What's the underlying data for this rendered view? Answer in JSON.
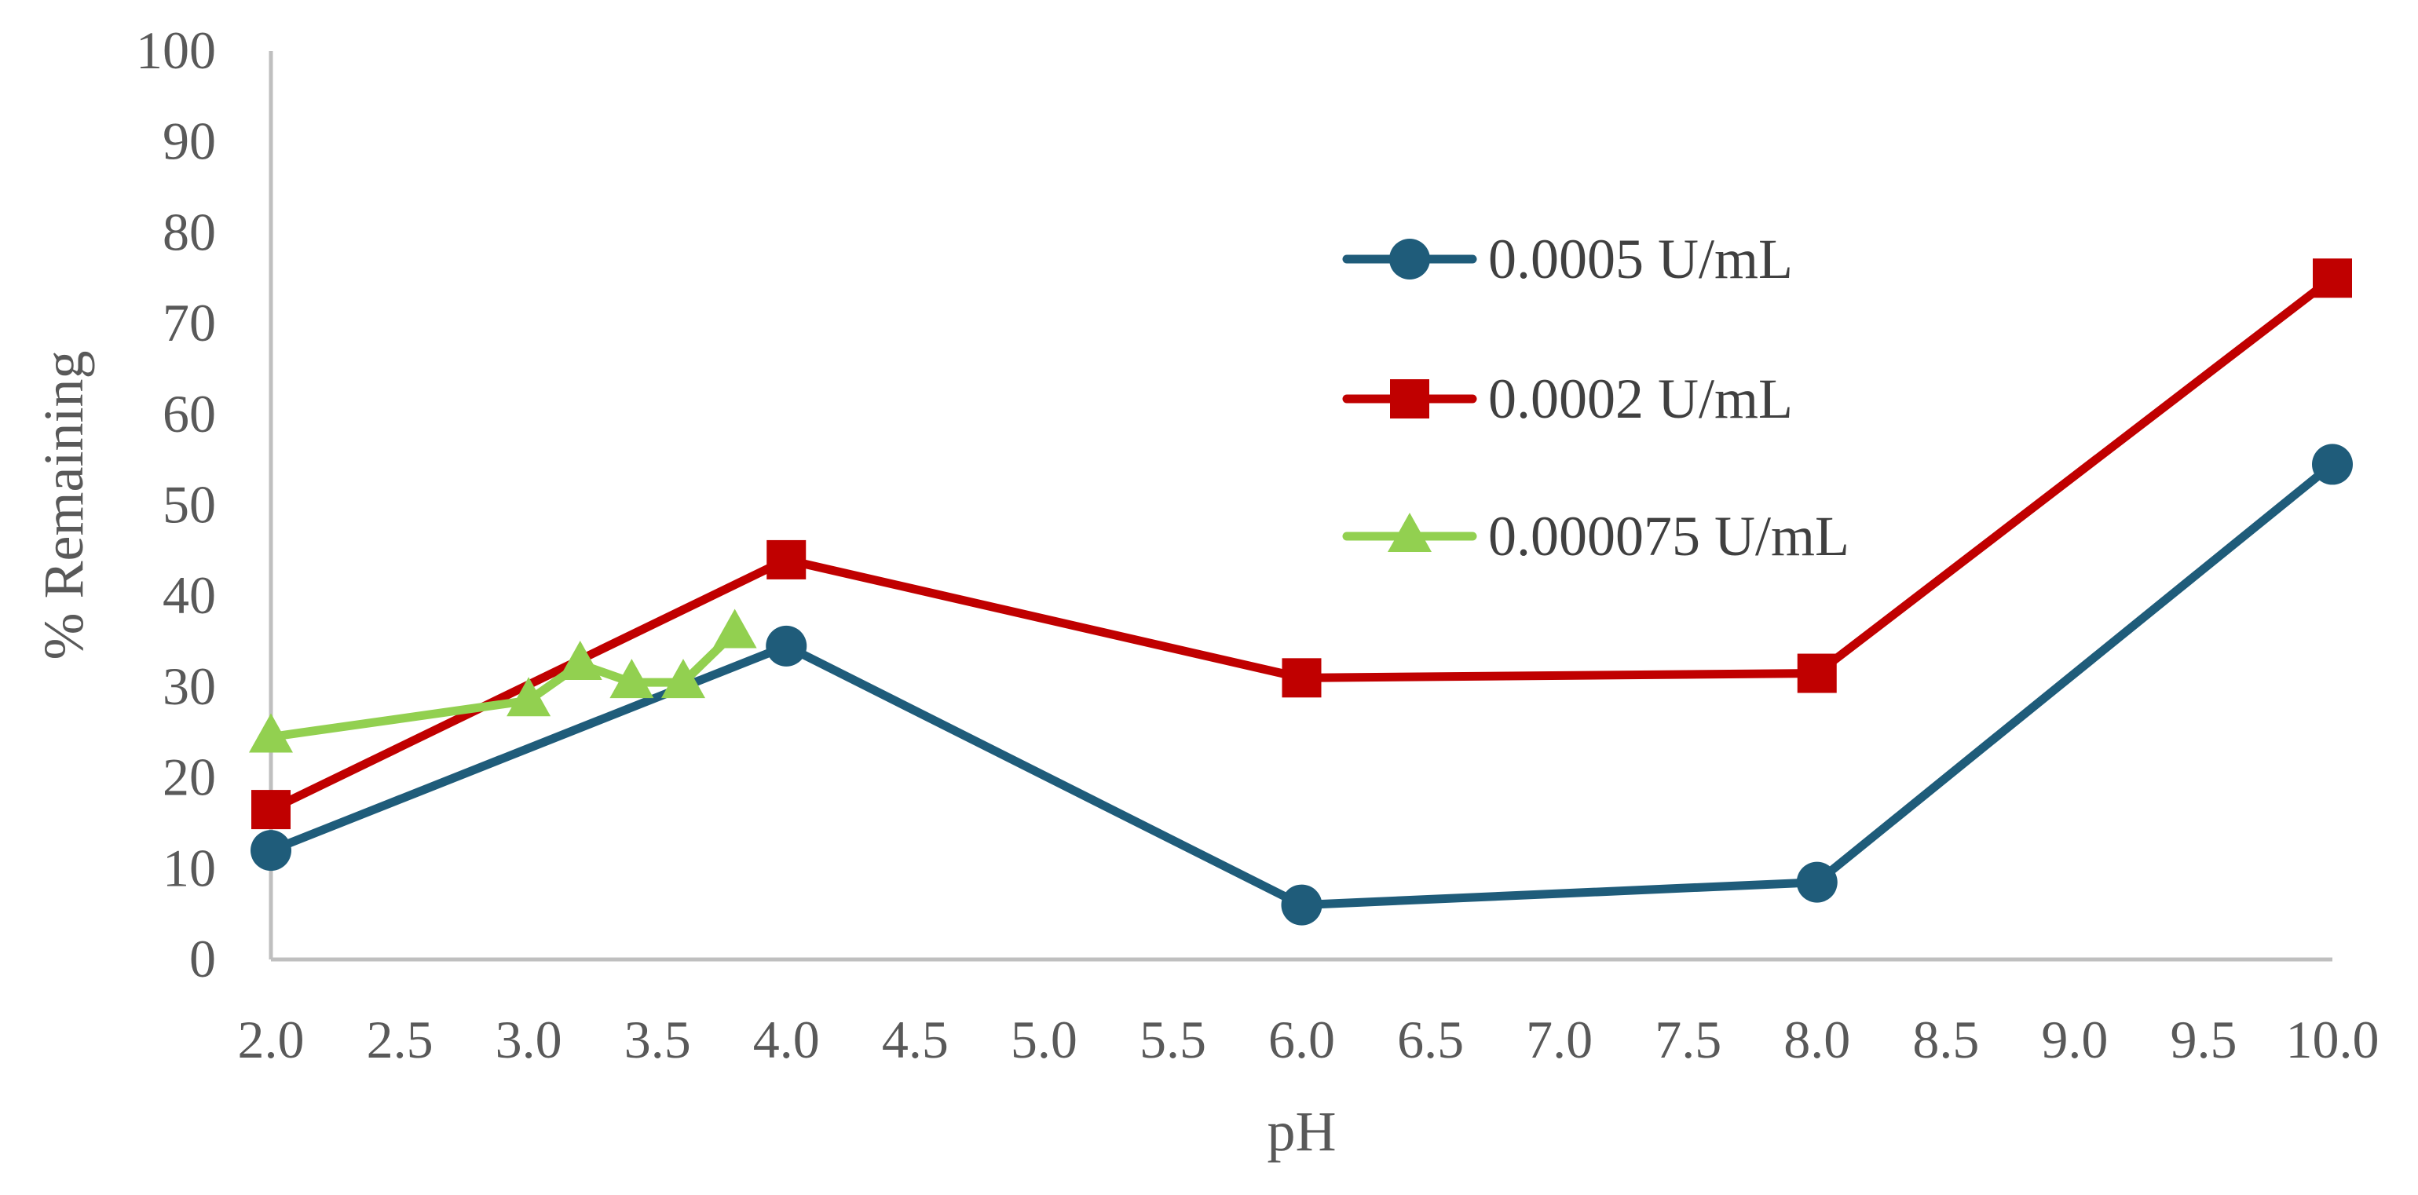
{
  "chart_data": {
    "type": "line",
    "title": "",
    "xlabel": "pH",
    "ylabel": "% Remaining",
    "xlim": [
      2.0,
      10.0
    ],
    "ylim": [
      0,
      100
    ],
    "x_ticks": [
      "2.0",
      "2.5",
      "3.0",
      "3.5",
      "4.0",
      "4.5",
      "5.0",
      "5.5",
      "6.0",
      "6.5",
      "7.0",
      "7.5",
      "8.0",
      "8.5",
      "9.0",
      "9.5",
      "10.0"
    ],
    "y_ticks": [
      "0",
      "10",
      "20",
      "30",
      "40",
      "50",
      "60",
      "70",
      "80",
      "90",
      "100"
    ],
    "grid": false,
    "legend_position": "right",
    "series": [
      {
        "name": "0.0005 U/mL",
        "color": "#1f5c7a",
        "marker": "circle",
        "x": [
          2.0,
          4.0,
          6.0,
          8.0,
          10.0
        ],
        "y": [
          12,
          34.5,
          6,
          8.5,
          54.5
        ]
      },
      {
        "name": "0.0002 U/mL",
        "color": "#c00000",
        "marker": "square",
        "x": [
          2.0,
          4.0,
          6.0,
          8.0,
          10.0
        ],
        "y": [
          16.5,
          44,
          31,
          31.5,
          75
        ]
      },
      {
        "name": "0.000075 U/mL",
        "color": "#92d050",
        "marker": "triangle",
        "x": [
          2.0,
          3.0,
          3.2,
          3.4,
          3.6,
          3.8
        ],
        "y": [
          24.5,
          28.5,
          32.5,
          30.5,
          30.5,
          36
        ]
      }
    ]
  }
}
